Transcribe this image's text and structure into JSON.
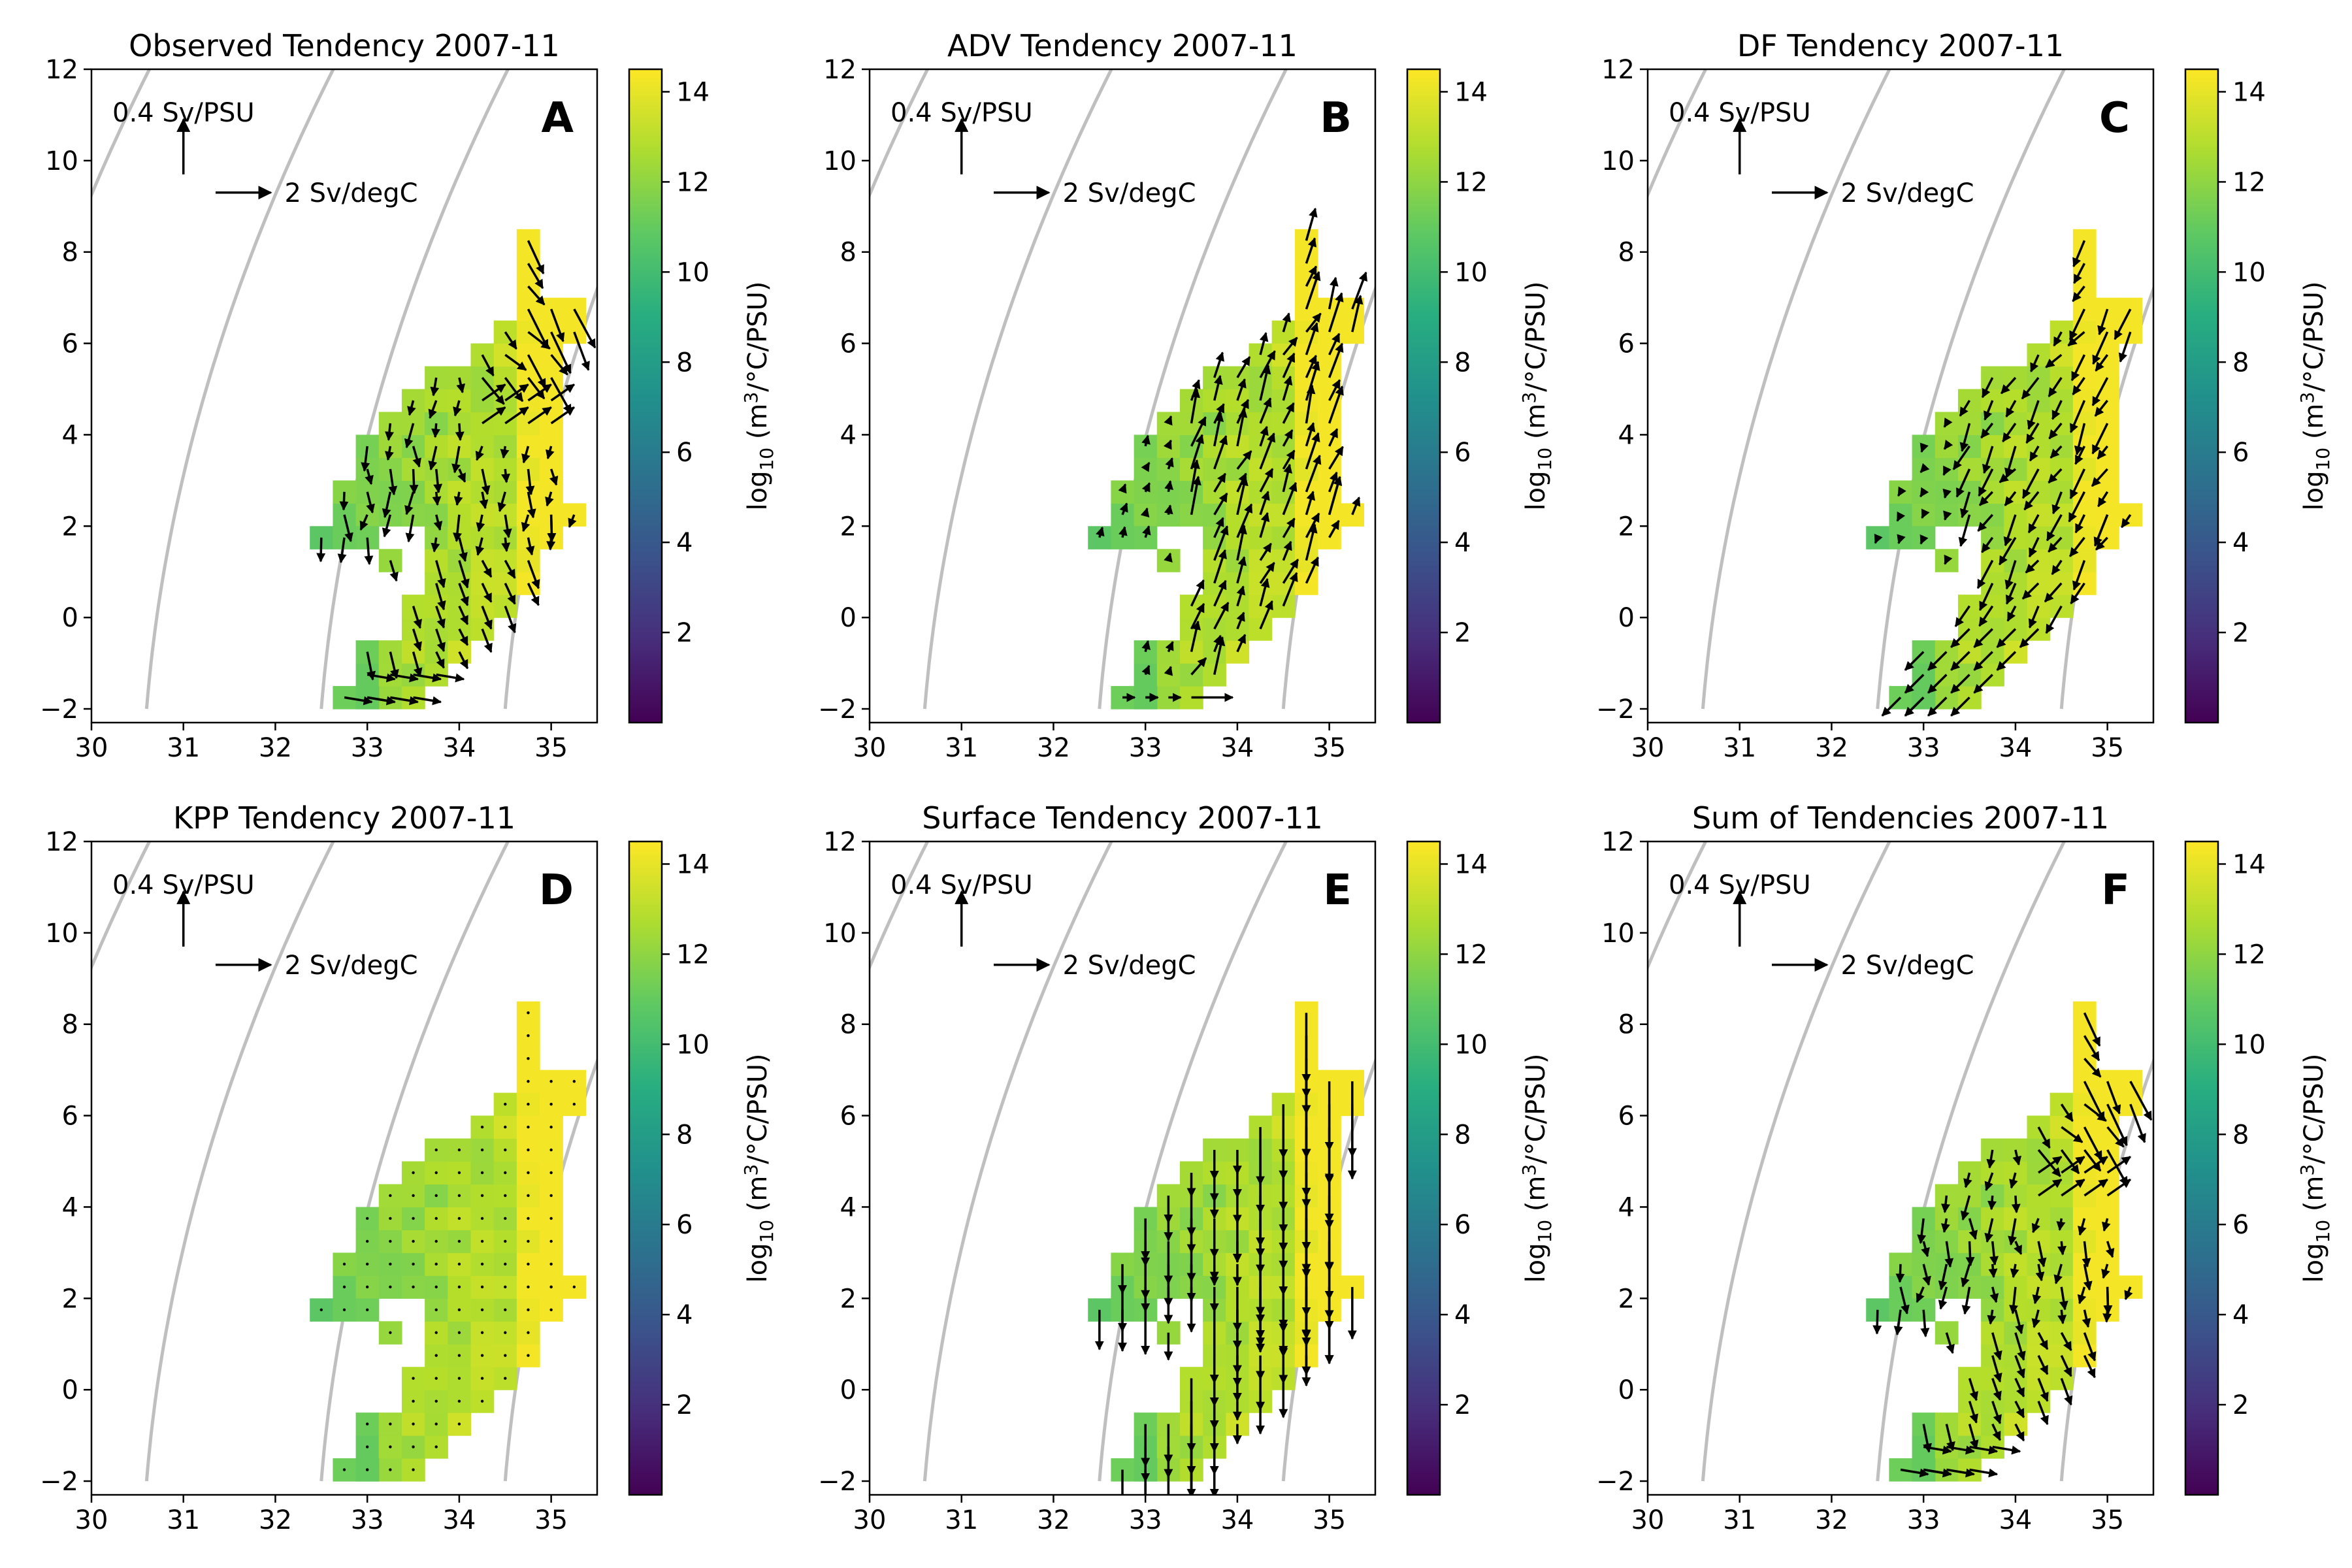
{
  "figure": {
    "colorbar_label_main": "log",
    "colorbar_label_sub": "10",
    "colorbar_label_rest": " (m",
    "colorbar_label_sup": "3",
    "colorbar_label_end": "/°C/PSU)",
    "ref_salt_label": "0.4 Sv/PSU",
    "ref_temp_label": "2 Sv/degC"
  },
  "colors": {
    "colormap": "viridis",
    "density_contour": "#bfbfbf",
    "arrow": "#000000"
  },
  "chart_data": [
    {
      "type": "heatmap",
      "panel_letter": "A",
      "title": "Observed Tendency 2007-11",
      "xlim": [
        30,
        35.5
      ],
      "ylim": [
        -2.3,
        12
      ],
      "xticks": [
        30,
        31,
        32,
        33,
        34,
        35
      ],
      "yticks": [
        -2,
        0,
        2,
        4,
        6,
        8,
        10,
        12
      ],
      "colorbar_ticks": [
        2,
        4,
        6,
        8,
        10,
        12,
        14
      ],
      "colorbar_range": [
        0,
        14.5
      ],
      "arrow_mode": "obs"
    },
    {
      "type": "heatmap",
      "panel_letter": "B",
      "title": "ADV Tendency 2007-11",
      "xlim": [
        30,
        35.5
      ],
      "ylim": [
        -2.3,
        12
      ],
      "xticks": [
        30,
        31,
        32,
        33,
        34,
        35
      ],
      "yticks": [
        -2,
        0,
        2,
        4,
        6,
        8,
        10,
        12
      ],
      "colorbar_ticks": [
        2,
        4,
        6,
        8,
        10,
        12,
        14
      ],
      "colorbar_range": [
        0,
        14.5
      ],
      "arrow_mode": "adv"
    },
    {
      "type": "heatmap",
      "panel_letter": "C",
      "title": "DF Tendency 2007-11",
      "xlim": [
        30,
        35.5
      ],
      "ylim": [
        -2.3,
        12
      ],
      "xticks": [
        30,
        31,
        32,
        33,
        34,
        35
      ],
      "yticks": [
        -2,
        0,
        2,
        4,
        6,
        8,
        10,
        12
      ],
      "colorbar_ticks": [
        2,
        4,
        6,
        8,
        10,
        12,
        14
      ],
      "colorbar_range": [
        0,
        14.5
      ],
      "arrow_mode": "df"
    },
    {
      "type": "heatmap",
      "panel_letter": "D",
      "title": "KPP Tendency 2007-11",
      "xlim": [
        30,
        35.5
      ],
      "ylim": [
        -2.3,
        12
      ],
      "xticks": [
        30,
        31,
        32,
        33,
        34,
        35
      ],
      "yticks": [
        -2,
        0,
        2,
        4,
        6,
        8,
        10,
        12
      ],
      "colorbar_ticks": [
        2,
        4,
        6,
        8,
        10,
        12,
        14
      ],
      "colorbar_range": [
        0,
        14.5
      ],
      "arrow_mode": "kpp"
    },
    {
      "type": "heatmap",
      "panel_letter": "E",
      "title": "Surface Tendency 2007-11",
      "xlim": [
        30,
        35.5
      ],
      "ylim": [
        -2.3,
        12
      ],
      "xticks": [
        30,
        31,
        32,
        33,
        34,
        35
      ],
      "yticks": [
        -2,
        0,
        2,
        4,
        6,
        8,
        10,
        12
      ],
      "colorbar_ticks": [
        2,
        4,
        6,
        8,
        10,
        12,
        14
      ],
      "colorbar_range": [
        0,
        14.5
      ],
      "arrow_mode": "surf"
    },
    {
      "type": "heatmap",
      "panel_letter": "F",
      "title": "Sum of Tendencies 2007-11",
      "xlim": [
        30,
        35.5
      ],
      "ylim": [
        -2.3,
        12
      ],
      "xticks": [
        30,
        31,
        32,
        33,
        34,
        35
      ],
      "yticks": [
        -2,
        0,
        2,
        4,
        6,
        8,
        10,
        12
      ],
      "colorbar_ticks": [
        2,
        4,
        6,
        8,
        10,
        12,
        14
      ],
      "colorbar_range": [
        0,
        14.5
      ],
      "arrow_mode": "obs"
    }
  ]
}
